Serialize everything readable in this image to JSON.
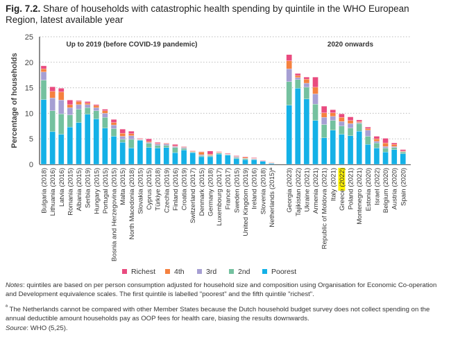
{
  "title": {
    "fig": "Fig. 7.2.",
    "text": "Share of households with catastrophic health spending by quintile in the WHO European Region, latest available year"
  },
  "colors": {
    "Poorest": "#14b1e7",
    "2nd": "#74c19f",
    "3rd": "#a69fd3",
    "4th": "#f5813f",
    "Richest": "#e94b7f",
    "highlight": "#fff200"
  },
  "chart_data": {
    "type": "bar",
    "stacked": true,
    "title": "",
    "ylabel": "Percentage of households",
    "ylim": [
      0,
      25
    ],
    "yticks": [
      0,
      5,
      10,
      15,
      20,
      25
    ],
    "grid": true,
    "legend_placement": "bottom",
    "group_labels": [
      "Up to 2019 (before COVID-19 pandemic)",
      "2020 onwards"
    ],
    "highlighted_category": "Greece (2022)",
    "categories": [
      "Bulgaria (2018)",
      "Lithuania (2016)",
      "Latvia (2016)",
      "Romania (2015)",
      "Albania (2015)",
      "Serbia (2019)",
      "Hungary (2015)",
      "Portugal (2015)",
      "Bosnia and Herzegovina (2015)",
      "Malta (2015)",
      "North Macedonia (2018)",
      "Slovakia (2015)",
      "Cyprus (2015)",
      "Türkiye (2018)",
      "Czechia (2019)",
      "Finland (2016)",
      "Croatia (2019)",
      "Switzerland (2017)",
      "Denmark (2015)",
      "Germany (2018)",
      "Luxembourg (2017)",
      "France (2017)",
      "Sweden (2015)",
      "United Kingdom (2019)",
      "Ireland (2016)",
      "Slovenia (2018)",
      "Netherlands (2015)ª",
      "Georgia (2023)",
      "Tajikistan (2022)",
      "Ukraine (2021)",
      "Armenia (2021)",
      "Republic of Moldova (2021)",
      "Italy (2021)",
      "Greece (2022)",
      "Poland (2021)",
      "Montenegro (2021)",
      "Estonia (2020)",
      "Israel (2022)",
      "Belgium (2020)",
      "Austria (2020)",
      "Spain (2020)"
    ],
    "group_of_category": [
      0,
      0,
      0,
      0,
      0,
      0,
      0,
      0,
      0,
      0,
      0,
      0,
      0,
      0,
      0,
      0,
      0,
      0,
      0,
      0,
      0,
      0,
      0,
      0,
      0,
      0,
      0,
      1,
      1,
      1,
      1,
      1,
      1,
      1,
      1,
      1,
      1,
      1,
      1,
      1,
      1
    ],
    "series": [
      {
        "name": "Poorest",
        "values": [
          12.7,
          6.4,
          5.9,
          7.3,
          8.2,
          9.8,
          8.9,
          7.1,
          5.5,
          4.3,
          3.2,
          4.7,
          3.3,
          3.2,
          3.3,
          2.3,
          2.8,
          2.3,
          1.5,
          1.5,
          2.0,
          1.8,
          1.1,
          0.9,
          0.9,
          0.6,
          0.15,
          11.6,
          14.9,
          12.8,
          8.6,
          5.2,
          6.7,
          5.9,
          5.6,
          6.5,
          3.9,
          3.2,
          2.4,
          2.9,
          2.1
        ]
      },
      {
        "name": "2nd",
        "values": [
          3.8,
          4.1,
          4.0,
          2.4,
          2.6,
          1.3,
          1.6,
          2.1,
          1.5,
          0.6,
          1.7,
          0.1,
          0.8,
          0.5,
          0.4,
          1.0,
          0.3,
          0.1,
          0.2,
          0.2,
          0.2,
          0.1,
          0.2,
          0.2,
          0.1,
          0.0,
          0.05,
          4.6,
          1.7,
          2.3,
          3.2,
          2.6,
          1.9,
          1.6,
          1.5,
          1.5,
          1.6,
          1.0,
          0.8,
          0.4,
          0.3
        ]
      },
      {
        "name": "3rd",
        "values": [
          1.6,
          2.5,
          2.7,
          1.4,
          0.9,
          0.6,
          0.6,
          0.8,
          0.7,
          0.6,
          0.7,
          0.1,
          0.2,
          0.3,
          0.3,
          0.2,
          0.2,
          0.1,
          0.2,
          0.1,
          0.1,
          0.1,
          0.2,
          0.1,
          0.1,
          0.1,
          0.1,
          2.5,
          0.4,
          0.8,
          2.0,
          1.4,
          0.8,
          0.9,
          0.9,
          0.2,
          1.2,
          0.3,
          0.3,
          0.2,
          0.1
        ]
      },
      {
        "name": "4th",
        "values": [
          0.6,
          1.3,
          1.6,
          0.6,
          0.6,
          0.3,
          0.4,
          0.5,
          0.5,
          0.6,
          0.4,
          0.1,
          0.2,
          0.1,
          0.1,
          0.1,
          0.1,
          0.1,
          0.5,
          0.2,
          0.1,
          0.1,
          0.1,
          0.2,
          0.1,
          0.0,
          0.1,
          1.6,
          0.4,
          0.8,
          1.3,
          0.9,
          0.7,
          0.8,
          0.6,
          0.2,
          0.3,
          0.5,
          0.7,
          0.4,
          0.1
        ]
      },
      {
        "name": "Richest",
        "values": [
          0.6,
          0.9,
          0.7,
          0.9,
          0.2,
          0.3,
          0.2,
          0.3,
          0.6,
          0.8,
          0.5,
          0.1,
          0.5,
          0.2,
          0.1,
          0.3,
          0.1,
          0.1,
          0.1,
          0.6,
          0.1,
          0.1,
          0.1,
          0.1,
          0.1,
          0.1,
          0.05,
          1.2,
          0.4,
          0.4,
          2.0,
          1.3,
          0.6,
          0.7,
          0.7,
          0.3,
          0.3,
          0.5,
          0.9,
          0.3,
          0.3
        ]
      }
    ],
    "legend_order": [
      "Richest",
      "4th",
      "3rd",
      "2nd",
      "Poorest"
    ]
  },
  "notes": {
    "notes_label": "Notes",
    "notes_text": ":  quintiles are based on per person consumption adjusted for household size and composition using Organisation for Economic Co-operation and Development equivalence scales. The first quintile is labelled \"poorest\" and the fifth quintile \"richest\".",
    "footnote_mark": "ª",
    "footnote_text": " The Netherlands cannot be compared with other Member States because the Dutch household budget survey does not collect spending on the annual deductible amount households pay as OOP fees for health care, biasing the results downwards.",
    "source_label": "Source",
    "source_text": ":  WHO (5,25)."
  }
}
